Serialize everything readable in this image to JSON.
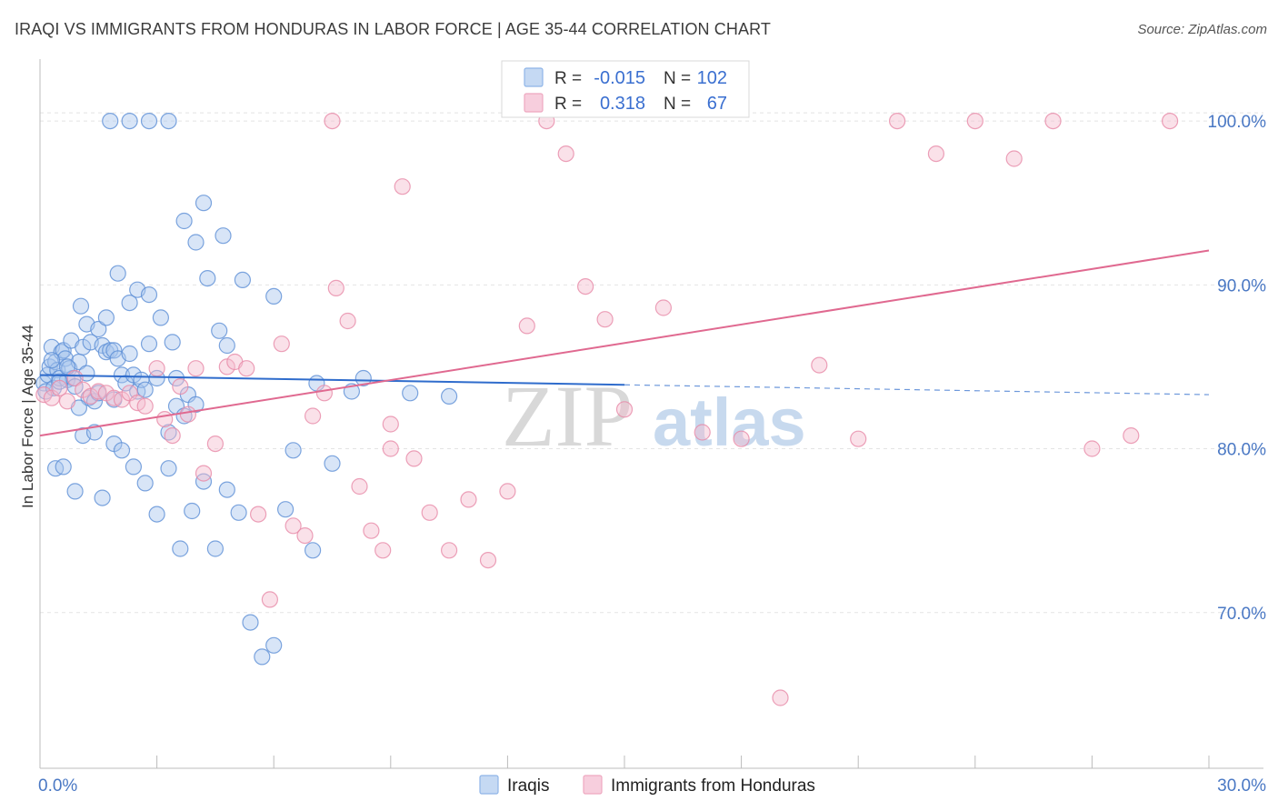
{
  "title": "IRAQI VS IMMIGRANTS FROM HONDURAS IN LABOR FORCE | AGE 35-44 CORRELATION CHART",
  "source": "Source: ZipAtlas.com",
  "watermark": {
    "zip": "ZIP",
    "atlas": "atlas"
  },
  "chart_data": {
    "type": "scatter",
    "ylabel": "In Labor Force | Age 35-44",
    "xlim": [
      0,
      30
    ],
    "ylim": [
      60.5,
      103.5
    ],
    "x_tick_labels": [
      "0.0%",
      "30.0%"
    ],
    "x_ticks": [
      0,
      30
    ],
    "y_ticks": [
      70,
      80,
      90,
      100
    ],
    "y_tick_labels": [
      "70.0%",
      "80.0%",
      "90.0%",
      "100.0%"
    ],
    "grid": true,
    "legend_top": {
      "rows": [
        {
          "r_label": "R =",
          "r_value": "-0.015",
          "n_label": "N =",
          "n_value": "102",
          "color": "#8fb5e8",
          "fill": "#c5d9f3"
        },
        {
          "r_label": "R =",
          "r_value": "0.318",
          "n_label": "N =",
          "n_value": "67",
          "color": "#eea8c0",
          "fill": "#f7cedd"
        }
      ]
    },
    "legend_bottom": [
      "Iraqis",
      "Immigrants from Honduras"
    ],
    "series": [
      {
        "name": "Iraqis",
        "color": "#5d8fd6",
        "fill": "#a9c6ee",
        "trend": {
          "x_solid": [
            0,
            15
          ],
          "y_solid": [
            84.5,
            83.9
          ],
          "x_dashed": [
            15,
            30
          ],
          "y_dashed": [
            83.9,
            83.3
          ],
          "color": "#2f6ccc"
        },
        "x": [
          0.1,
          0.15,
          0.2,
          0.25,
          0.3,
          0.35,
          0.4,
          0.45,
          0.5,
          0.55,
          0.6,
          0.65,
          0.7,
          0.75,
          0.8,
          0.85,
          0.9,
          1.0,
          1.05,
          1.1,
          1.2,
          1.25,
          1.3,
          1.4,
          1.5,
          1.6,
          1.7,
          1.8,
          1.9,
          2.0,
          2.1,
          2.2,
          2.3,
          2.4,
          2.5,
          2.6,
          2.7,
          2.8,
          3.0,
          3.3,
          3.5,
          3.7,
          3.8,
          4.0,
          0.3,
          0.5,
          0.7,
          1.0,
          1.2,
          1.5,
          1.7,
          2.0,
          2.3,
          2.5,
          2.8,
          3.1,
          3.4,
          3.7,
          4.0,
          4.3,
          4.6,
          0.4,
          0.6,
          0.9,
          1.1,
          1.4,
          1.6,
          1.9,
          2.1,
          2.4,
          2.7,
          3.0,
          3.3,
          3.6,
          3.9,
          4.2,
          4.5,
          4.8,
          5.1,
          5.4,
          5.7,
          6.0,
          6.3,
          6.5,
          7.0,
          7.5,
          8.0,
          8.3,
          9.5,
          10.5,
          1.8,
          2.3,
          2.8,
          3.3,
          4.2,
          4.7,
          5.2,
          6.0,
          7.1,
          4.8,
          3.5,
          1.9
        ],
        "y": [
          84.0,
          83.5,
          84.5,
          85.0,
          86.2,
          83.7,
          85.3,
          84.8,
          84.3,
          85.9,
          86.0,
          85.5,
          84.2,
          84.9,
          86.6,
          84.3,
          83.8,
          85.3,
          88.7,
          86.2,
          87.6,
          83.1,
          86.5,
          82.9,
          83.4,
          86.3,
          85.9,
          86.0,
          86.0,
          85.5,
          84.5,
          84.0,
          85.8,
          84.5,
          83.5,
          84.2,
          83.6,
          86.4,
          84.3,
          81.0,
          82.6,
          82.0,
          83.3,
          82.7,
          85.4,
          84.1,
          85.0,
          82.5,
          84.6,
          87.3,
          88.0,
          90.7,
          88.9,
          89.7,
          89.4,
          88.0,
          86.5,
          93.9,
          92.6,
          90.4,
          87.2,
          78.8,
          78.9,
          77.4,
          80.8,
          81.0,
          77.0,
          80.3,
          79.9,
          78.9,
          77.9,
          76.0,
          78.8,
          73.9,
          76.2,
          78.0,
          73.9,
          77.5,
          76.1,
          69.4,
          67.3,
          68.0,
          76.3,
          79.9,
          73.8,
          79.1,
          83.5,
          84.3,
          83.4,
          83.2,
          100.0,
          100.0,
          100.0,
          100.0,
          95.0,
          93.0,
          90.3,
          89.3,
          84.0,
          86.3,
          84.3,
          83.0
        ],
        "note": "approximate"
      },
      {
        "name": "Immigrants from Honduras",
        "color": "#e78aa8",
        "fill": "#f4bccf",
        "trend": {
          "x": [
            0,
            30
          ],
          "y": [
            80.8,
            92.1
          ],
          "color": "#e06990"
        },
        "x": [
          0.1,
          0.3,
          0.5,
          0.7,
          0.9,
          1.1,
          1.3,
          1.5,
          1.7,
          1.9,
          2.1,
          2.3,
          2.5,
          2.7,
          3.0,
          3.2,
          3.4,
          3.6,
          3.8,
          4.0,
          4.2,
          4.5,
          4.8,
          5.0,
          5.3,
          5.6,
          5.9,
          6.2,
          6.5,
          6.8,
          7.0,
          7.3,
          7.6,
          7.9,
          8.2,
          8.5,
          8.8,
          9.0,
          9.3,
          9.6,
          10.0,
          10.5,
          11.0,
          11.5,
          12.0,
          12.5,
          13.0,
          13.5,
          14.0,
          14.5,
          15.0,
          16.0,
          17.0,
          18.0,
          19.0,
          20.0,
          21.0,
          22.0,
          23.0,
          24.0,
          25.0,
          26.0,
          27.0,
          28.0,
          29.0,
          7.5,
          9.0
        ],
        "y": [
          83.3,
          83.1,
          83.7,
          82.9,
          84.3,
          83.6,
          83.2,
          83.5,
          83.4,
          83.1,
          83.0,
          83.4,
          82.8,
          82.6,
          84.9,
          81.8,
          80.8,
          83.8,
          82.1,
          84.9,
          78.5,
          80.3,
          85.0,
          85.3,
          84.9,
          76.0,
          70.8,
          86.4,
          75.3,
          74.7,
          82.0,
          83.4,
          89.8,
          87.8,
          77.7,
          75.0,
          73.8,
          81.5,
          96.0,
          79.4,
          76.1,
          73.8,
          76.9,
          73.2,
          77.4,
          87.5,
          100.0,
          98.0,
          89.9,
          87.9,
          82.4,
          88.6,
          81.0,
          80.6,
          64.8,
          85.1,
          80.6,
          100.0,
          98.0,
          100.0,
          97.7,
          100.0,
          80.0,
          80.8,
          100.0,
          100.0,
          80.0
        ],
        "note": "approximate"
      }
    ]
  }
}
